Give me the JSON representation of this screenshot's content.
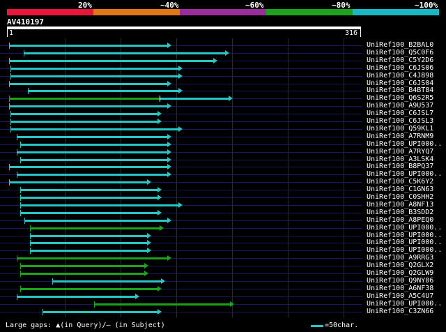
{
  "legend": {
    "labels": [
      "20%",
      "~40%",
      "~60%",
      "~80%",
      "~100%"
    ],
    "colors": [
      "#e8163c",
      "#e07818",
      "#9b2e9b",
      "#1ea31e",
      "#1ab8c4"
    ]
  },
  "query": {
    "name": "AV410197",
    "start": "1",
    "end": "316"
  },
  "hits": [
    {
      "name": "UniRef100_B2BAL0",
      "start": 1,
      "end": 143,
      "color": "#29c5c5"
    },
    {
      "name": "UniRef100_Q5C0F6",
      "start": 14,
      "end": 195,
      "color": "#29c5c5"
    },
    {
      "name": "UniRef100_C5Y2D6",
      "start": 1,
      "end": 184,
      "color": "#29c5c5"
    },
    {
      "name": "UniRef100_C6JS06",
      "start": 2,
      "end": 153,
      "color": "#29c5c5"
    },
    {
      "name": "UniRef100_C4J898",
      "start": 2,
      "end": 153,
      "color": "#29c5c5"
    },
    {
      "name": "UniRef100_C6JS04",
      "start": 1,
      "end": 143,
      "color": "#29c5c5"
    },
    {
      "name": "UniRef100_B4BT84",
      "start": 18,
      "end": 153,
      "color": "#29c5c5"
    },
    {
      "name": "UniRef100_Q6S2R5",
      "start": 1,
      "end": 198,
      "color": "#1ea31e",
      "color2": "#29c5c5",
      "split": 136
    },
    {
      "name": "UniRef100_A9U537",
      "start": 1,
      "end": 143,
      "color": "#29c5c5"
    },
    {
      "name": "UniRef100_C6JSL7",
      "start": 2,
      "end": 134,
      "color": "#29c5c5"
    },
    {
      "name": "UniRef100_C6JSL3",
      "start": 2,
      "end": 134,
      "color": "#29c5c5"
    },
    {
      "name": "UniRef100_Q59KL1",
      "start": 2,
      "end": 153,
      "color": "#29c5c5"
    },
    {
      "name": "UniRef100_A7RNM9",
      "start": 8,
      "end": 143,
      "color": "#29c5c5"
    },
    {
      "name": "UniRef100_UPI000..",
      "start": 11,
      "end": 143,
      "color": "#29c5c5"
    },
    {
      "name": "UniRef100_A7RYQ7",
      "start": 8,
      "end": 143,
      "color": "#29c5c5"
    },
    {
      "name": "UniRef100_A3LSK4",
      "start": 11,
      "end": 143,
      "color": "#29c5c5"
    },
    {
      "name": "UniRef100_B8PQ37",
      "start": 1,
      "end": 143,
      "color": "#29c5c5"
    },
    {
      "name": "UniRef100_UPI000..",
      "start": 8,
      "end": 143,
      "color": "#29c5c5"
    },
    {
      "name": "UniRef100_C5K6Y2",
      "start": 1,
      "end": 125,
      "color": "#29c5c5"
    },
    {
      "name": "UniRef100_C1GN63",
      "start": 11,
      "end": 134,
      "color": "#29c5c5"
    },
    {
      "name": "UniRef100_C0SHH2",
      "start": 11,
      "end": 134,
      "color": "#29c5c5"
    },
    {
      "name": "UniRef100_A8NF13",
      "start": 11,
      "end": 153,
      "color": "#29c5c5"
    },
    {
      "name": "UniRef100_B3SDD2",
      "start": 11,
      "end": 134,
      "color": "#29c5c5"
    },
    {
      "name": "UniRef100_A8PEQ0",
      "start": 15,
      "end": 143,
      "color": "#29c5c5"
    },
    {
      "name": "UniRef100_UPI000..",
      "start": 20,
      "end": 136,
      "color": "#1ea31e"
    },
    {
      "name": "UniRef100_UPI000..",
      "start": 20,
      "end": 125,
      "color": "#29c5c5"
    },
    {
      "name": "UniRef100_UPI000..",
      "start": 20,
      "end": 125,
      "color": "#29c5c5"
    },
    {
      "name": "UniRef100_UPI000..",
      "start": 20,
      "end": 125,
      "color": "#29c5c5"
    },
    {
      "name": "UniRef100_A9RRG3",
      "start": 8,
      "end": 143,
      "color": "#1ea31e"
    },
    {
      "name": "UniRef100_Q2GLX2",
      "start": 11,
      "end": 122,
      "color": "#1ea31e"
    },
    {
      "name": "UniRef100_Q2GLW9",
      "start": 11,
      "end": 122,
      "color": "#1ea31e"
    },
    {
      "name": "UniRef100_Q9NY06",
      "start": 40,
      "end": 137,
      "color": "#29c5c5"
    },
    {
      "name": "UniRef100_A6NF38",
      "start": 11,
      "end": 134,
      "color": "#1ea31e"
    },
    {
      "name": "UniRef100_A5C4U7",
      "start": 8,
      "end": 114,
      "color": "#29c5c5"
    },
    {
      "name": "UniRef100_UPI000..",
      "start": 77,
      "end": 199,
      "color": "#1ea31e"
    },
    {
      "name": "UniRef100_C3ZN66",
      "start": 31,
      "end": 134,
      "color": "#29c5c5"
    }
  ],
  "footer": {
    "gaps_text": "Large gaps: ▲(in Query)/– (in Subject)",
    "scale_text": "=50char."
  }
}
